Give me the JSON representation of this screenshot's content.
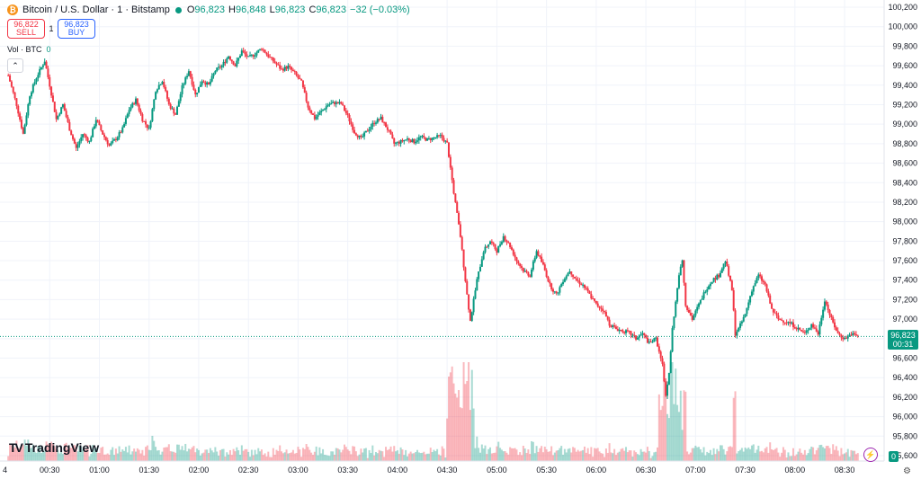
{
  "header": {
    "symbol_title": "Bitcoin / U.S. Dollar · 1 · Bitstamp",
    "coin_glyph": "₿",
    "open_key": "O",
    "open": "96,823",
    "high_key": "H",
    "high": "96,848",
    "low_key": "L",
    "low": "96,823",
    "close_key": "C",
    "close": "96,823",
    "change": "−32 (−0.03%)"
  },
  "trade": {
    "sell_price": "96,822",
    "sell_label": "SELL",
    "quantity": "1",
    "buy_price": "96,823",
    "buy_label": "BUY"
  },
  "volume_legend": {
    "label": "Vol · BTC",
    "value": "0"
  },
  "collapse_glyph": "⌃",
  "last_price": {
    "price": "96,823",
    "countdown": "00:31"
  },
  "volume_axis_tag": "0",
  "logo_mark": "TV",
  "logo_text": "TradingView",
  "date_fragment": "4",
  "colors": {
    "up": "#089981",
    "down": "#f23645",
    "grid": "#f0f3fa",
    "text": "#131722"
  },
  "chart_data": {
    "type": "candlestick",
    "y_ticks": [
      "95,600",
      "95,800",
      "96,000",
      "96,200",
      "96,400",
      "96,600",
      "96,800",
      "97,000",
      "97,200",
      "97,400",
      "97,600",
      "97,800",
      "98,000",
      "98,200",
      "98,400",
      "98,600",
      "98,800",
      "99,000",
      "99,200",
      "99,400",
      "99,600",
      "99,800",
      "100,000",
      "100,200"
    ],
    "x_ticks": [
      "00:30",
      "01:00",
      "01:30",
      "02:00",
      "02:30",
      "03:00",
      "03:30",
      "04:00",
      "04:30",
      "05:00",
      "05:30",
      "06:00",
      "06:30",
      "07:00",
      "07:30",
      "08:00",
      "08:30"
    ],
    "ylim": [
      95600,
      100200
    ],
    "last_price": 96823,
    "x_start": "00:05",
    "x_end": "08:43",
    "price_path": [
      [
        "00:05",
        99500
      ],
      [
        "00:10",
        99200
      ],
      [
        "00:14",
        98900
      ],
      [
        "00:18",
        99300
      ],
      [
        "00:22",
        99480
      ],
      [
        "00:27",
        99650
      ],
      [
        "00:30",
        99400
      ],
      [
        "00:34",
        99050
      ],
      [
        "00:38",
        99200
      ],
      [
        "00:42",
        98950
      ],
      [
        "00:46",
        98750
      ],
      [
        "00:50",
        98900
      ],
      [
        "00:54",
        98820
      ],
      [
        "00:58",
        99050
      ],
      [
        "01:02",
        98900
      ],
      [
        "01:06",
        98780
      ],
      [
        "01:10",
        98850
      ],
      [
        "01:14",
        98950
      ],
      [
        "01:18",
        99150
      ],
      [
        "01:22",
        99250
      ],
      [
        "01:26",
        99050
      ],
      [
        "01:30",
        98950
      ],
      [
        "01:34",
        99350
      ],
      [
        "01:38",
        99450
      ],
      [
        "01:42",
        99200
      ],
      [
        "01:46",
        99100
      ],
      [
        "01:50",
        99380
      ],
      [
        "01:54",
        99550
      ],
      [
        "01:58",
        99300
      ],
      [
        "02:02",
        99450
      ],
      [
        "02:06",
        99400
      ],
      [
        "02:10",
        99550
      ],
      [
        "02:14",
        99600
      ],
      [
        "02:18",
        99700
      ],
      [
        "02:22",
        99600
      ],
      [
        "02:26",
        99750
      ],
      [
        "02:30",
        99680
      ],
      [
        "02:34",
        99720
      ],
      [
        "02:38",
        99780
      ],
      [
        "02:42",
        99700
      ],
      [
        "02:46",
        99630
      ],
      [
        "02:50",
        99560
      ],
      [
        "02:54",
        99590
      ],
      [
        "02:58",
        99520
      ],
      [
        "03:02",
        99430
      ],
      [
        "03:06",
        99180
      ],
      [
        "03:10",
        99060
      ],
      [
        "03:14",
        99130
      ],
      [
        "03:18",
        99200
      ],
      [
        "03:22",
        99220
      ],
      [
        "03:26",
        99210
      ],
      [
        "03:30",
        99080
      ],
      [
        "03:34",
        98920
      ],
      [
        "03:38",
        98850
      ],
      [
        "03:42",
        98940
      ],
      [
        "03:46",
        99020
      ],
      [
        "03:50",
        99060
      ],
      [
        "03:54",
        98950
      ],
      [
        "03:58",
        98800
      ],
      [
        "04:02",
        98820
      ],
      [
        "04:06",
        98850
      ],
      [
        "04:10",
        98820
      ],
      [
        "04:14",
        98870
      ],
      [
        "04:18",
        98840
      ],
      [
        "04:22",
        98860
      ],
      [
        "04:26",
        98880
      ],
      [
        "04:30",
        98800
      ],
      [
        "04:34",
        98300
      ],
      [
        "04:38",
        97850
      ],
      [
        "04:42",
        97250
      ],
      [
        "04:44",
        96980
      ],
      [
        "04:48",
        97400
      ],
      [
        "04:52",
        97700
      ],
      [
        "04:56",
        97800
      ],
      [
        "05:00",
        97700
      ],
      [
        "05:04",
        97850
      ],
      [
        "05:08",
        97750
      ],
      [
        "05:12",
        97600
      ],
      [
        "05:16",
        97500
      ],
      [
        "05:20",
        97450
      ],
      [
        "05:24",
        97700
      ],
      [
        "05:28",
        97550
      ],
      [
        "05:32",
        97350
      ],
      [
        "05:36",
        97250
      ],
      [
        "05:40",
        97400
      ],
      [
        "05:44",
        97500
      ],
      [
        "05:48",
        97400
      ],
      [
        "05:52",
        97350
      ],
      [
        "05:56",
        97250
      ],
      [
        "06:00",
        97150
      ],
      [
        "06:04",
        97100
      ],
      [
        "06:08",
        96950
      ],
      [
        "06:12",
        96900
      ],
      [
        "06:16",
        96880
      ],
      [
        "06:20",
        96860
      ],
      [
        "06:24",
        96800
      ],
      [
        "06:28",
        96850
      ],
      [
        "06:32",
        96750
      ],
      [
        "06:36",
        96800
      ],
      [
        "06:40",
        96550
      ],
      [
        "06:42",
        96200
      ],
      [
        "06:44",
        96450
      ],
      [
        "06:46",
        96900
      ],
      [
        "06:50",
        97450
      ],
      [
        "06:52",
        97600
      ],
      [
        "06:54",
        97150
      ],
      [
        "06:58",
        97000
      ],
      [
        "07:02",
        97150
      ],
      [
        "07:06",
        97300
      ],
      [
        "07:10",
        97400
      ],
      [
        "07:14",
        97450
      ],
      [
        "07:18",
        97600
      ],
      [
        "07:22",
        97300
      ],
      [
        "07:24",
        96850
      ],
      [
        "07:26",
        96900
      ],
      [
        "07:30",
        97050
      ],
      [
        "07:34",
        97300
      ],
      [
        "07:38",
        97450
      ],
      [
        "07:42",
        97350
      ],
      [
        "07:46",
        97100
      ],
      [
        "07:50",
        97000
      ],
      [
        "07:54",
        96980
      ],
      [
        "07:58",
        96950
      ],
      [
        "08:02",
        96900
      ],
      [
        "08:06",
        96850
      ],
      [
        "08:10",
        96950
      ],
      [
        "08:14",
        96850
      ],
      [
        "08:18",
        97200
      ],
      [
        "08:22",
        97000
      ],
      [
        "08:26",
        96850
      ],
      [
        "08:30",
        96800
      ],
      [
        "08:34",
        96850
      ],
      [
        "08:38",
        96823
      ]
    ]
  }
}
